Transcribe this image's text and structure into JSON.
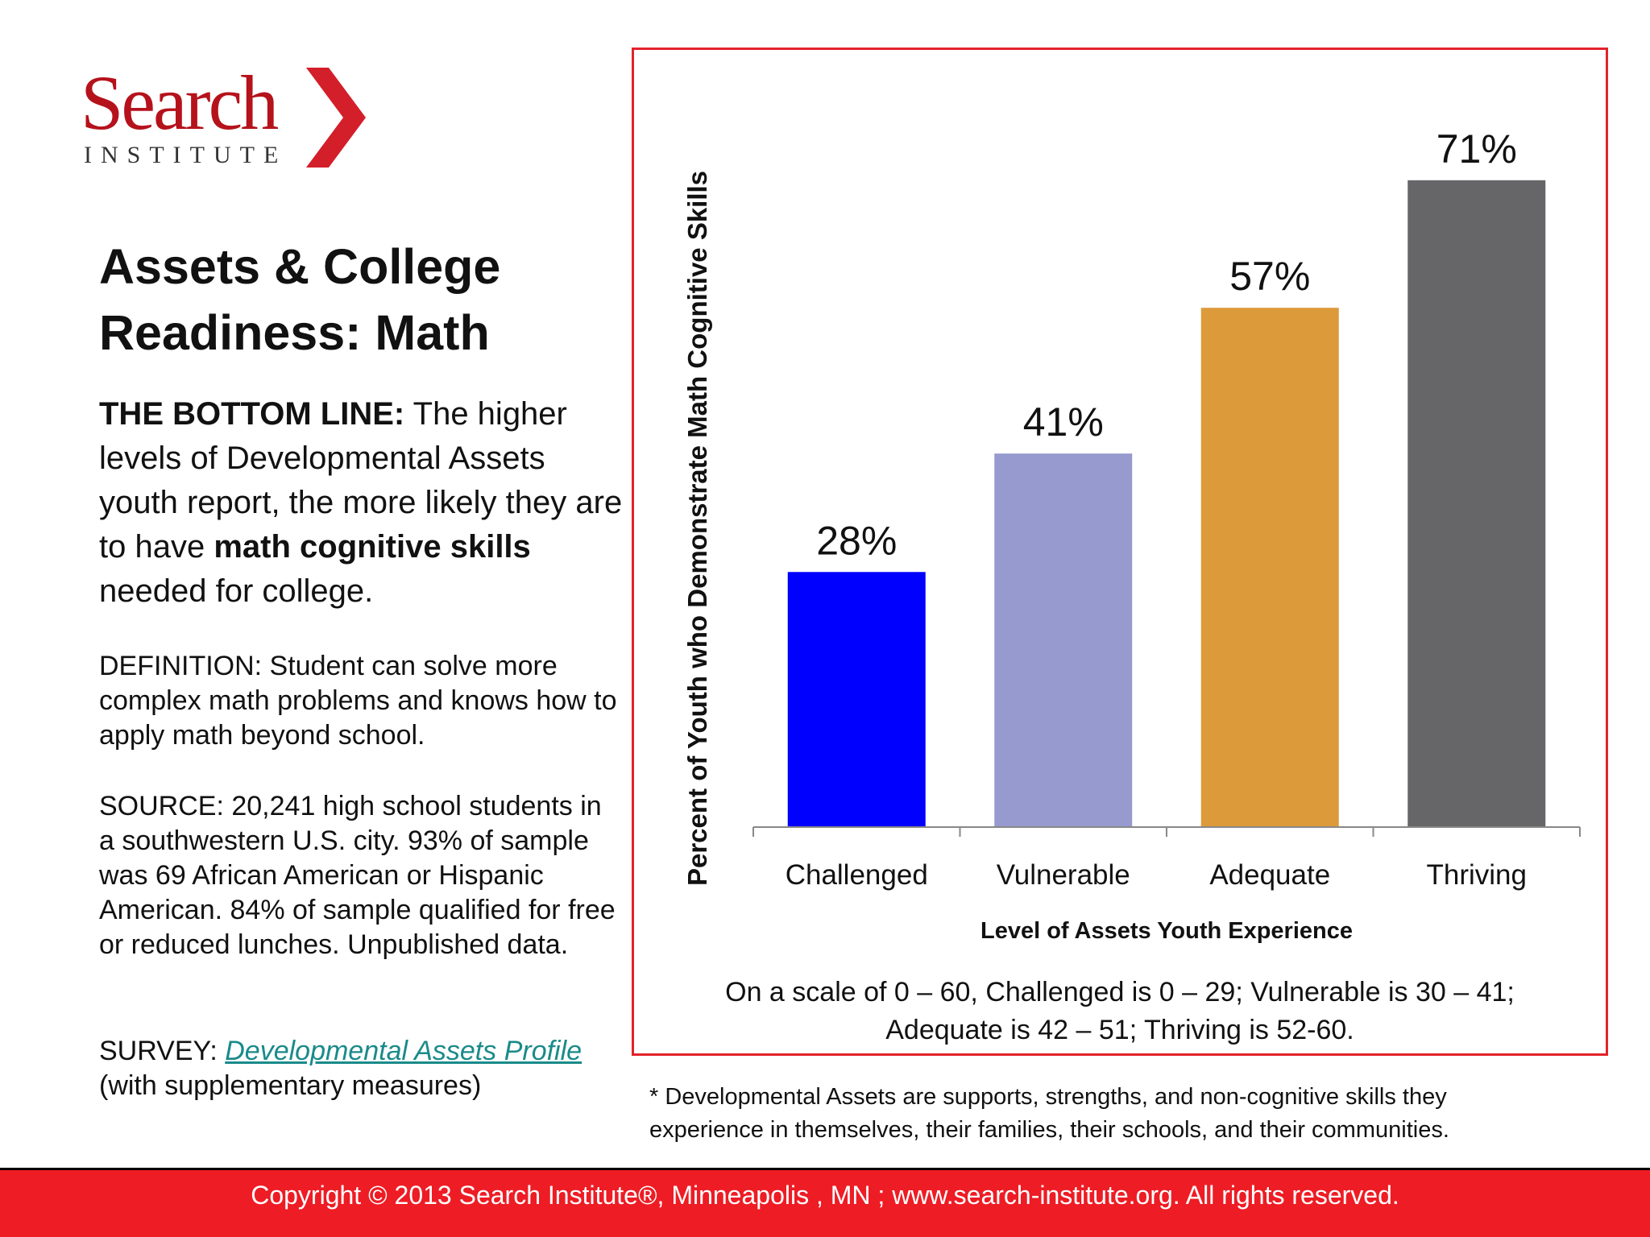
{
  "logo": {
    "word": "Search",
    "sub": "INSTITUTE",
    "brand_color": "#b5121b",
    "icon": "chevron-right-icon"
  },
  "title": {
    "line1": "Assets & College",
    "line2": "Readiness: Math"
  },
  "bottom_line": {
    "label": "THE BOTTOM LINE:",
    "text1": " The higher levels of Developmental Assets youth report, the more likely they are to have ",
    "emphasis": "math cognitive skills",
    "text2": " needed for college."
  },
  "definition": "DEFINITION: Student can solve more complex math problems and knows how to apply math beyond school.",
  "source": "SOURCE: 20,241 high school students in a southwestern U.S. city. 93% of sample was 69 African American or Hispanic American. 84% of sample qualified for free or reduced lunches. Unpublished data.",
  "survey": {
    "label": "SURVEY: ",
    "link_text": "Developmental Assets Profile",
    "suffix": "(with supplementary measures)"
  },
  "chart_data": {
    "type": "bar",
    "title": "",
    "categories": [
      "Challenged",
      "Vulnerable",
      "Adequate",
      "Thriving"
    ],
    "values": [
      28,
      41,
      57,
      71
    ],
    "value_labels": [
      "28%",
      "41%",
      "57%",
      "71%"
    ],
    "colors": [
      "#0000ff",
      "#969ace",
      "#dd9a3a",
      "#666568"
    ],
    "xlabel": "Level of Assets Youth Experience",
    "ylabel": "Percent of Youth who Demonstrate Math Cognitive Skills",
    "ylim": [
      0,
      80
    ],
    "grid": false,
    "legend": "none"
  },
  "scale_note": {
    "line1": "On a scale of 0 – 60, Challenged is 0 – 29; Vulnerable is 30 – 41;",
    "line2": "Adequate is 42 – 51; Thriving is 52-60."
  },
  "footnote": {
    "line1": "* Developmental Assets are supports, strengths, and non-cognitive skills they",
    "line2": "experience in themselves, their families, their schools, and their communities."
  },
  "footer": "Copyright © 2013 Search Institute®, Minneapolis , MN ; www.search-institute.org. All rights reserved.",
  "colors": {
    "accent_red": "#e2232a",
    "footer_red": "#ee1c24",
    "link": "#1a8a8a"
  }
}
